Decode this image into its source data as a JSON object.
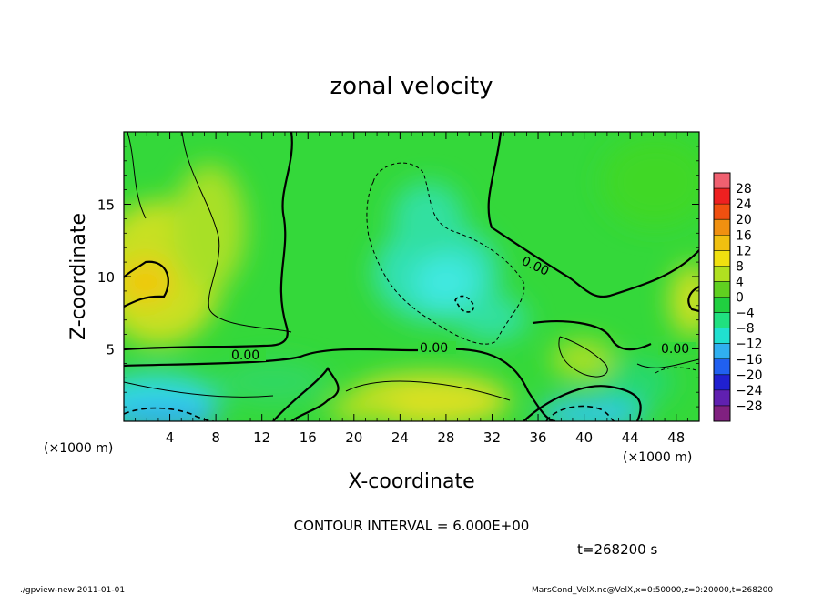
{
  "chart_data": {
    "type": "heatmap",
    "title": "zonal velocity",
    "xlabel": "X-coordinate",
    "ylabel": "Z-coordinate",
    "x_unit_label": "(×1000 m)",
    "x_unit_label_right": "(×1000 m)",
    "xlim": [
      0,
      50
    ],
    "ylim": [
      0,
      20
    ],
    "x_ticks": [
      "4",
      "8",
      "12",
      "16",
      "20",
      "24",
      "28",
      "32",
      "36",
      "40",
      "44",
      "48"
    ],
    "x_tick_values": [
      4,
      8,
      12,
      16,
      20,
      24,
      28,
      32,
      36,
      40,
      44,
      48
    ],
    "y_ticks": [
      "5",
      "10",
      "15"
    ],
    "y_tick_values": [
      5,
      10,
      15
    ],
    "colorbar": {
      "labels": [
        "28",
        "24",
        "20",
        "16",
        "12",
        "8",
        "4",
        "0",
        "−4",
        "−8",
        "−12",
        "−16",
        "−20",
        "−24",
        "−28"
      ],
      "colors": [
        "#f06070",
        "#ee2020",
        "#f05010",
        "#f09010",
        "#f0c010",
        "#f0e010",
        "#b0e020",
        "#60d020",
        "#20d040",
        "#20e080",
        "#20e0d0",
        "#30b0f0",
        "#2060f0",
        "#2020d0",
        "#6020b0",
        "#802080"
      ]
    },
    "contour_labels": [
      "0.00",
      "0.00",
      "0.00",
      "0.00"
    ],
    "contour_interval_text": "CONTOUR INTERVAL = 6.000E+00",
    "time_text": "t=268200 s"
  },
  "footer": {
    "left": "./gpview-new 2011-01-01",
    "right": "MarsCond_VelX.nc@VelX,x=0:50000,z=0:20000,t=268200"
  }
}
